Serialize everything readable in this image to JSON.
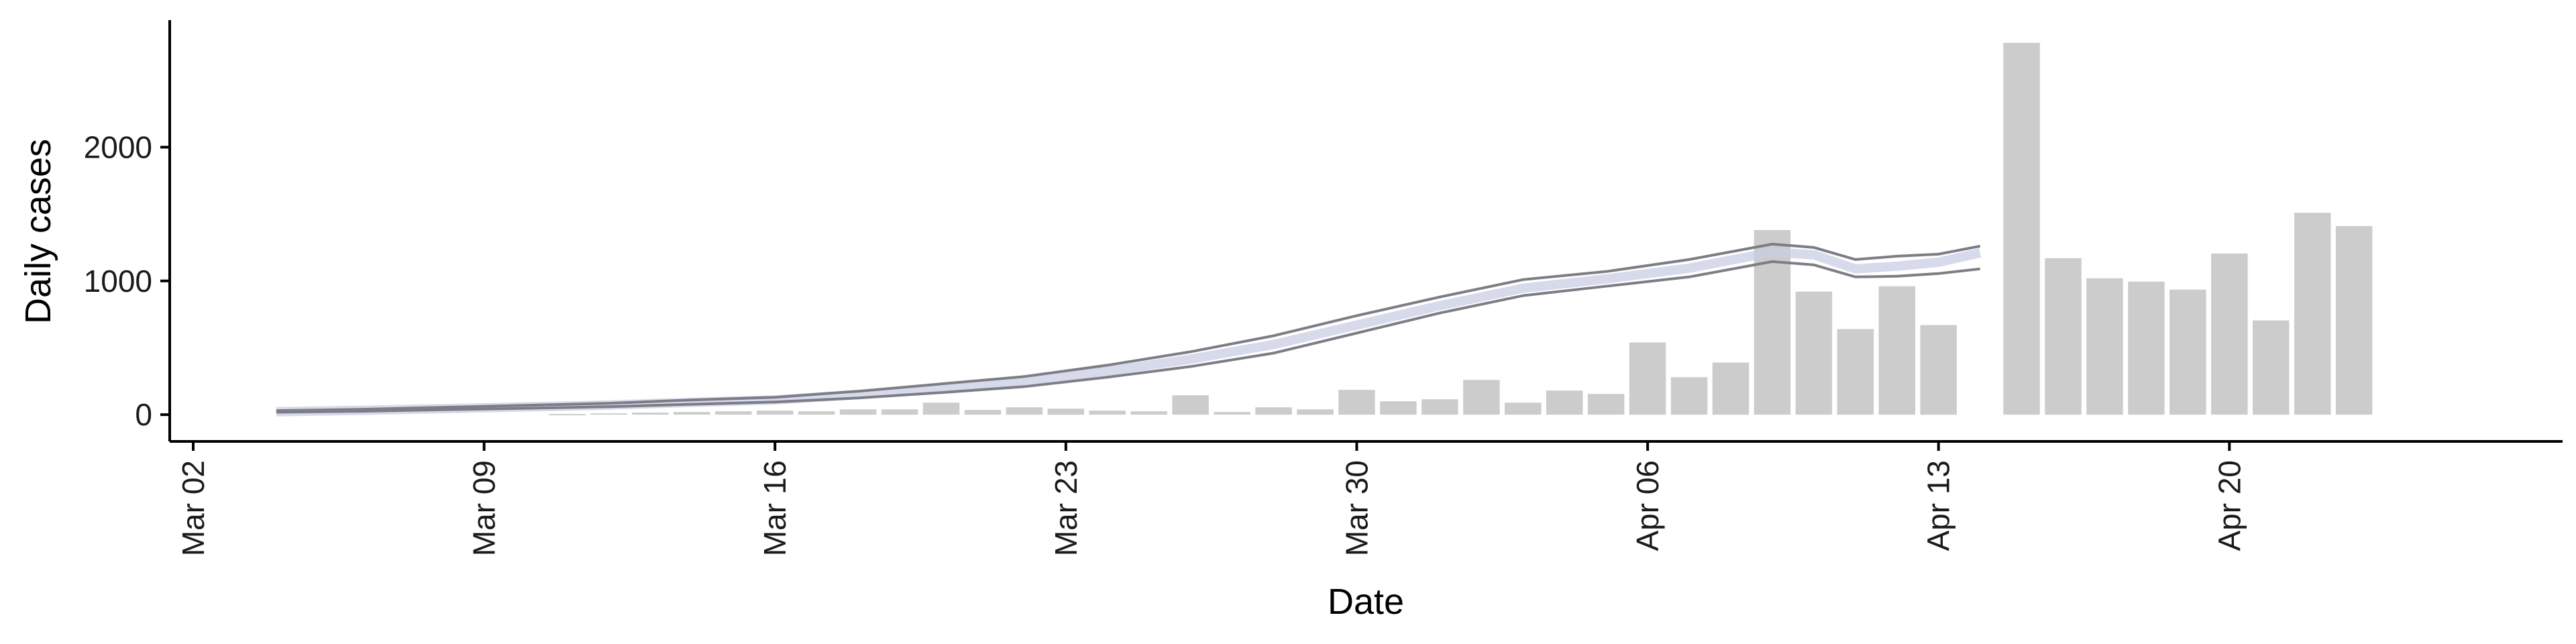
{
  "chart_data": {
    "type": "bar",
    "title": "",
    "xlabel": "Date",
    "ylabel": "Daily cases",
    "x_start_date": "2020-03-02",
    "xlim": [
      "2020-03-02",
      "2020-04-26"
    ],
    "ylim": [
      -200,
      2950
    ],
    "yticks": [
      0,
      1000,
      2000
    ],
    "xticks": [
      "Mar 02",
      "Mar 09",
      "Mar 16",
      "Mar 23",
      "Mar 30",
      "Apr 06",
      "Apr 13",
      "Apr 20"
    ],
    "grid": false,
    "legend": "none",
    "colors": {
      "bars_observed": "#cccccc",
      "band_upper": "#7d7d85",
      "band_lower": "#7d7d85",
      "estimate_center": "#c9cde4",
      "projection_line": "#e2e4f0"
    },
    "bars": {
      "dates": [
        "2020-03-11",
        "2020-03-12",
        "2020-03-13",
        "2020-03-14",
        "2020-03-15",
        "2020-03-16",
        "2020-03-17",
        "2020-03-18",
        "2020-03-19",
        "2020-03-20",
        "2020-03-21",
        "2020-03-22",
        "2020-03-23",
        "2020-03-24",
        "2020-03-25",
        "2020-03-26",
        "2020-03-27",
        "2020-03-28",
        "2020-03-29",
        "2020-03-30",
        "2020-03-31",
        "2020-04-01",
        "2020-04-02",
        "2020-04-03",
        "2020-04-04",
        "2020-04-05",
        "2020-04-06",
        "2020-04-07",
        "2020-04-08",
        "2020-04-09",
        "2020-04-10",
        "2020-04-11",
        "2020-04-12",
        "2020-04-13",
        "2020-04-15",
        "2020-04-16",
        "2020-04-17",
        "2020-04-18",
        "2020-04-19",
        "2020-04-20",
        "2020-04-21",
        "2020-04-22",
        "2020-04-23"
      ],
      "values": [
        5,
        10,
        15,
        20,
        25,
        30,
        25,
        40,
        40,
        90,
        35,
        55,
        45,
        30,
        25,
        145,
        20,
        55,
        40,
        185,
        100,
        115,
        260,
        90,
        180,
        155,
        540,
        280,
        390,
        1380,
        920,
        640,
        960,
        670,
        2780,
        1170,
        1020,
        995,
        935,
        1205,
        705,
        1510,
        1410
      ]
    },
    "estimate": {
      "dates": [
        "2020-03-04",
        "2020-03-06",
        "2020-03-08",
        "2020-03-10",
        "2020-03-12",
        "2020-03-14",
        "2020-03-16",
        "2020-03-18",
        "2020-03-20",
        "2020-03-22",
        "2020-03-24",
        "2020-03-26",
        "2020-03-28",
        "2020-03-30",
        "2020-04-01",
        "2020-04-03",
        "2020-04-05",
        "2020-04-07",
        "2020-04-09",
        "2020-04-10",
        "2020-04-11",
        "2020-04-12",
        "2020-04-13",
        "2020-04-14"
      ],
      "upper": [
        30,
        40,
        55,
        70,
        85,
        110,
        130,
        175,
        230,
        285,
        370,
        470,
        590,
        740,
        880,
        1010,
        1070,
        1160,
        1275,
        1250,
        1160,
        1185,
        1200,
        1260
      ],
      "center": [
        22,
        32,
        45,
        58,
        72,
        92,
        110,
        150,
        195,
        250,
        325,
        415,
        525,
        670,
        815,
        945,
        1015,
        1095,
        1215,
        1195,
        1090,
        1110,
        1140,
        1210
      ],
      "lower": [
        18,
        25,
        37,
        48,
        60,
        78,
        95,
        125,
        165,
        210,
        280,
        360,
        460,
        610,
        760,
        890,
        960,
        1030,
        1145,
        1120,
        1030,
        1035,
        1055,
        1090
      ]
    }
  }
}
